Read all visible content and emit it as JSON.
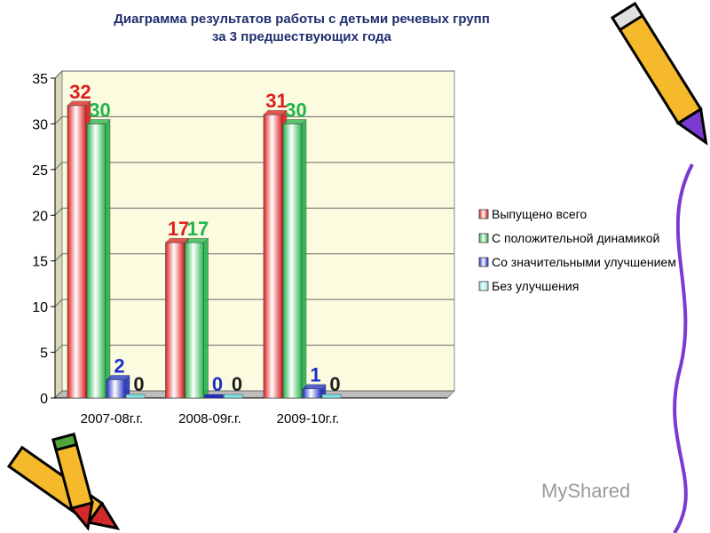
{
  "title": {
    "line1": "Диаграмма результатов работы с детьми речевых групп",
    "line2": "за 3 предшествующих года"
  },
  "watermark": "MyShared",
  "colors": {
    "plot_bg": "#fbfbe0",
    "series": [
      "#dd1f1f",
      "#22b54a",
      "#1d2fc8",
      "#7fe3e3"
    ],
    "label_colors": [
      "#dd1f1f",
      "#22b54a",
      "#1d2fc8",
      "#1d1d1d"
    ]
  },
  "chart_data": {
    "type": "bar",
    "categories": [
      "2007-08г.г.",
      "2008-09г.г.",
      "2009-10г.г."
    ],
    "series": [
      {
        "name": "Выпущено всего",
        "values": [
          32,
          17,
          31
        ]
      },
      {
        "name": "С положительной динамикой",
        "values": [
          30,
          17,
          30
        ]
      },
      {
        "name": "Со значительными улучшением",
        "values": [
          2,
          0,
          1
        ]
      },
      {
        "name": "Без улучшения",
        "values": [
          0,
          0,
          0
        ]
      }
    ],
    "yticks": [
      "0",
      "5",
      "10",
      "15",
      "20",
      "25",
      "30",
      "35"
    ],
    "ylim": [
      0,
      35
    ],
    "grid": true,
    "legend_position": "right",
    "style": "3d-cylinder-bars"
  }
}
